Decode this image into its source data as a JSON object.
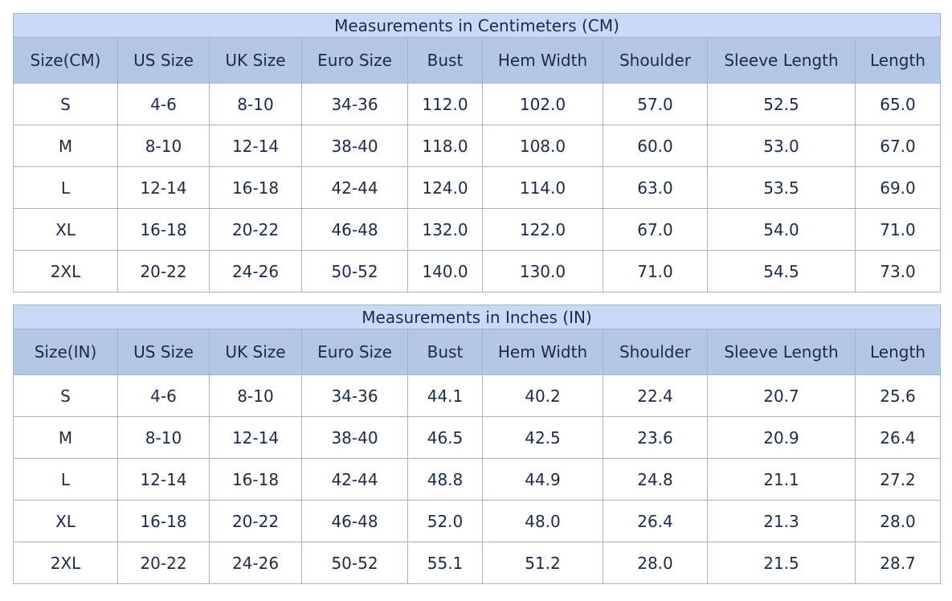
{
  "tables": [
    {
      "title": "Measurements in Centimeters (CM)",
      "columns": [
        "Size(CM)",
        "US Size",
        "UK Size",
        "Euro Size",
        "Bust",
        "Hem Width",
        "Shoulder",
        "Sleeve Length",
        "Length"
      ],
      "rows": [
        [
          "S",
          "4-6",
          "8-10",
          "34-36",
          "112.0",
          "102.0",
          "57.0",
          "52.5",
          "65.0"
        ],
        [
          "M",
          "8-10",
          "12-14",
          "38-40",
          "118.0",
          "108.0",
          "60.0",
          "53.0",
          "67.0"
        ],
        [
          "L",
          "12-14",
          "16-18",
          "42-44",
          "124.0",
          "114.0",
          "63.0",
          "53.5",
          "69.0"
        ],
        [
          "XL",
          "16-18",
          "20-22",
          "46-48",
          "132.0",
          "122.0",
          "67.0",
          "54.0",
          "71.0"
        ],
        [
          "2XL",
          "20-22",
          "24-26",
          "50-52",
          "140.0",
          "130.0",
          "71.0",
          "54.5",
          "73.0"
        ]
      ]
    },
    {
      "title": "Measurements in Inches (IN)",
      "columns": [
        "Size(IN)",
        "US Size",
        "UK Size",
        "Euro Size",
        "Bust",
        "Hem Width",
        "Shoulder",
        "Sleeve Length",
        "Length"
      ],
      "rows": [
        [
          "S",
          "4-6",
          "8-10",
          "34-36",
          "44.1",
          "40.2",
          "22.4",
          "20.7",
          "25.6"
        ],
        [
          "M",
          "8-10",
          "12-14",
          "38-40",
          "46.5",
          "42.5",
          "23.6",
          "20.9",
          "26.4"
        ],
        [
          "L",
          "12-14",
          "16-18",
          "42-44",
          "48.8",
          "44.9",
          "24.8",
          "21.1",
          "27.2"
        ],
        [
          "XL",
          "16-18",
          "20-22",
          "46-48",
          "52.0",
          "48.0",
          "26.4",
          "21.3",
          "28.0"
        ],
        [
          "2XL",
          "20-22",
          "24-26",
          "50-52",
          "55.1",
          "51.2",
          "28.0",
          "21.5",
          "28.7"
        ]
      ]
    }
  ]
}
